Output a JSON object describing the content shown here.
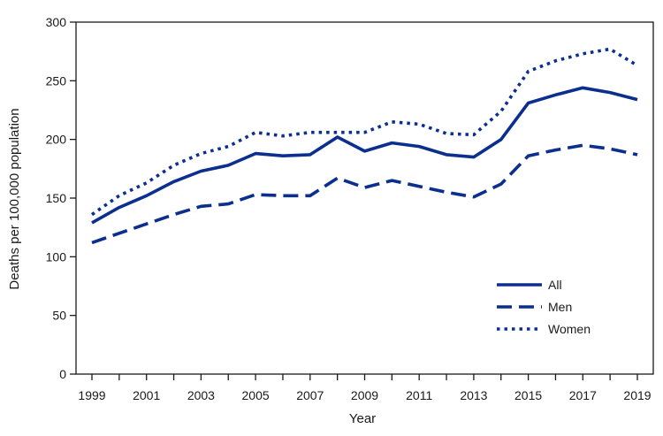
{
  "chart_data": {
    "type": "line",
    "title": "",
    "xlabel": "Year",
    "ylabel": "Deaths per 100,000 population",
    "x": [
      1999,
      2000,
      2001,
      2002,
      2003,
      2004,
      2005,
      2006,
      2007,
      2008,
      2009,
      2010,
      2011,
      2012,
      2013,
      2014,
      2015,
      2016,
      2017,
      2018,
      2019
    ],
    "x_tick_labels": [
      "1999",
      "2001",
      "2003",
      "2005",
      "2007",
      "2009",
      "2011",
      "2013",
      "2015",
      "2017",
      "2019"
    ],
    "y_tick_labels": [
      "0",
      "50",
      "100",
      "150",
      "200",
      "250",
      "300"
    ],
    "xlim": [
      1999,
      2019
    ],
    "ylim": [
      0,
      300
    ],
    "grid": false,
    "legend_position": "bottom-right",
    "series": [
      {
        "name": "All",
        "line_style": "solid",
        "color": "#0b2f8f",
        "values": [
          129,
          142,
          152,
          164,
          173,
          178,
          188,
          186,
          187,
          202,
          190,
          197,
          194,
          187,
          185,
          200,
          231,
          238,
          244,
          240,
          234
        ]
      },
      {
        "name": "Men",
        "line_style": "dashed",
        "color": "#0b2f8f",
        "values": [
          112,
          120,
          128,
          136,
          143,
          145,
          153,
          152,
          152,
          167,
          159,
          165,
          160,
          155,
          151,
          162,
          186,
          191,
          195,
          192,
          187
        ]
      },
      {
        "name": "Women",
        "line_style": "dotted",
        "color": "#0b2f8f",
        "values": [
          136,
          152,
          163,
          178,
          188,
          194,
          206,
          203,
          206,
          206,
          206,
          215,
          213,
          205,
          204,
          224,
          258,
          267,
          273,
          277,
          263
        ]
      }
    ]
  }
}
